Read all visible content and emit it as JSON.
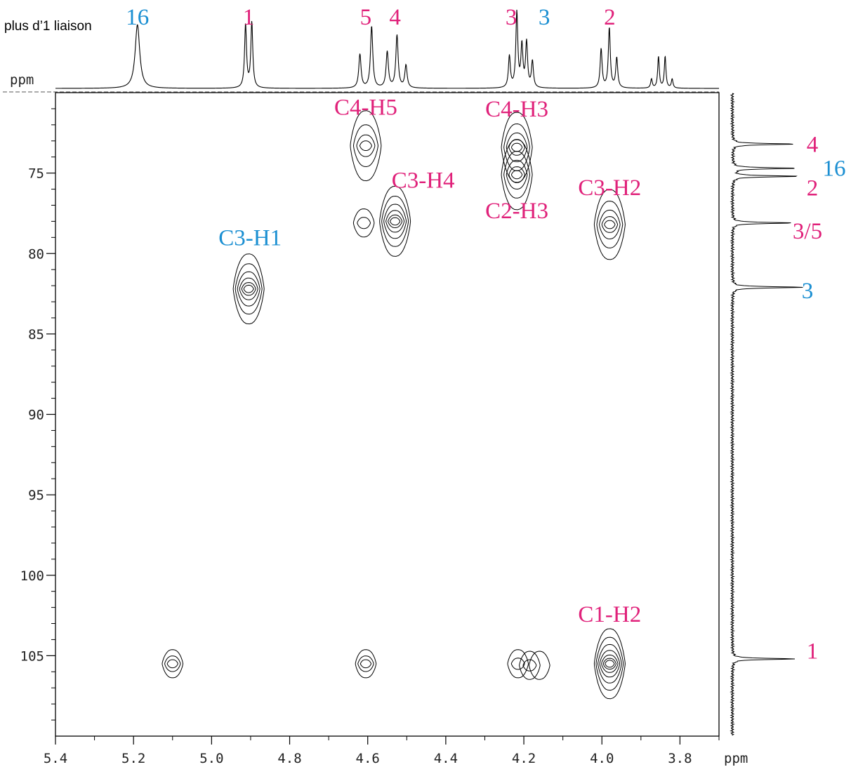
{
  "colors": {
    "pink": "#e0217a",
    "blue": "#1b8fd2",
    "ink": "#000000"
  },
  "chart_data": {
    "type": "scatter",
    "subtype": "2D NMR HMBC contour plot",
    "xlabel": "ppm",
    "top_axis_label": "ppm",
    "xlim": [
      5.4,
      3.7
    ],
    "ylim": [
      70,
      110
    ],
    "x_ticks": [
      "5.4",
      "5.2",
      "5.0",
      "4.8",
      "4.6",
      "4.4",
      "4.2",
      "4.0",
      "3.8"
    ],
    "x_tick_values": [
      5.4,
      5.2,
      5.0,
      4.8,
      4.6,
      4.4,
      4.2,
      4.0,
      3.8
    ],
    "y_ticks": [
      "75",
      "80",
      "85",
      "90",
      "95",
      "100",
      "105"
    ],
    "y_tick_values": [
      75,
      80,
      85,
      90,
      95,
      100,
      105
    ],
    "note": "plus d’1 liaison",
    "top_peak_labels": [
      {
        "text": "16",
        "x": 5.19,
        "color": "blue"
      },
      {
        "text": "1",
        "x": 4.905,
        "color": "pink"
      },
      {
        "text": "5",
        "x": 4.605,
        "color": "pink"
      },
      {
        "text": "4",
        "x": 4.53,
        "color": "pink"
      },
      {
        "text": "3",
        "x": 4.225,
        "color": "pink"
      },
      {
        "text": "3",
        "x": 4.18,
        "color": "blue"
      },
      {
        "text": "2",
        "x": 3.98,
        "color": "pink"
      }
    ],
    "right_peak_labels": [
      {
        "text": "4",
        "y": 73.2,
        "color": "pink"
      },
      {
        "text": "16",
        "y": 74.7,
        "color": "blue"
      },
      {
        "text": "2",
        "y": 75.9,
        "color": "pink"
      },
      {
        "text": "3/5",
        "y": 78.6,
        "color": "pink"
      },
      {
        "text": "3",
        "y": 82.3,
        "color": "blue"
      },
      {
        "text": "1",
        "y": 104.7,
        "color": "pink"
      }
    ],
    "cross_peaks": [
      {
        "label": "C4-H5",
        "x": 4.605,
        "y": 73.3,
        "color": "pink",
        "levels": 4
      },
      {
        "label": "C3-H4",
        "x": 4.53,
        "y": 78.0,
        "color": "pink",
        "levels": 6
      },
      {
        "label": "C4-H3",
        "x": 4.218,
        "y": 73.4,
        "color": "pink",
        "levels": 5
      },
      {
        "label": "C2-H3",
        "x": 4.218,
        "y": 75.1,
        "color": "pink",
        "levels": 5
      },
      {
        "label": "C3-H2",
        "x": 3.98,
        "y": 78.2,
        "color": "pink",
        "levels": 5
      },
      {
        "label": "C3-H1",
        "x": 4.905,
        "y": 82.2,
        "color": "blue",
        "levels": 6
      },
      {
        "label": "C1-H2",
        "x": 3.98,
        "y": 105.5,
        "color": "pink",
        "levels": 7
      },
      {
        "label": "",
        "x": 4.61,
        "y": 78.1,
        "color": "ink",
        "levels": 2
      },
      {
        "label": "",
        "x": 5.1,
        "y": 105.5,
        "color": "ink",
        "levels": 3
      },
      {
        "label": "",
        "x": 4.605,
        "y": 105.5,
        "color": "ink",
        "levels": 3
      },
      {
        "label": "",
        "x": 4.215,
        "y": 105.5,
        "color": "ink",
        "levels": 2
      },
      {
        "label": "",
        "x": 4.185,
        "y": 105.6,
        "color": "ink",
        "levels": 2
      },
      {
        "label": "",
        "x": 4.16,
        "y": 105.6,
        "color": "ink",
        "levels": 1
      }
    ],
    "h1_peaks": [
      {
        "x": 5.19,
        "h": 0.85,
        "w": 0.007
      },
      {
        "x": 4.913,
        "h": 0.84,
        "w": 0.003
      },
      {
        "x": 4.897,
        "h": 0.87,
        "w": 0.003
      },
      {
        "x": 4.62,
        "h": 0.45,
        "w": 0.0035
      },
      {
        "x": 4.59,
        "h": 0.82,
        "w": 0.0035
      },
      {
        "x": 4.55,
        "h": 0.48,
        "w": 0.0035
      },
      {
        "x": 4.525,
        "h": 0.7,
        "w": 0.0035
      },
      {
        "x": 4.502,
        "h": 0.3,
        "w": 0.0035
      },
      {
        "x": 4.237,
        "h": 0.42,
        "w": 0.003
      },
      {
        "x": 4.218,
        "h": 1.0,
        "w": 0.003
      },
      {
        "x": 4.205,
        "h": 0.55,
        "w": 0.003
      },
      {
        "x": 4.193,
        "h": 0.6,
        "w": 0.003
      },
      {
        "x": 4.178,
        "h": 0.35,
        "w": 0.003
      },
      {
        "x": 4.002,
        "h": 0.52,
        "w": 0.003
      },
      {
        "x": 3.981,
        "h": 0.8,
        "w": 0.003
      },
      {
        "x": 3.962,
        "h": 0.4,
        "w": 0.003
      },
      {
        "x": 3.873,
        "h": 0.12,
        "w": 0.0025
      },
      {
        "x": 3.855,
        "h": 0.42,
        "w": 0.0025
      },
      {
        "x": 3.838,
        "h": 0.42,
        "w": 0.0025
      },
      {
        "x": 3.82,
        "h": 0.12,
        "w": 0.0025
      }
    ],
    "c13_peaks": [
      {
        "y": 73.2,
        "h": 0.85
      },
      {
        "y": 74.7,
        "h": 0.88
      },
      {
        "y": 75.2,
        "h": 0.91
      },
      {
        "y": 78.1,
        "h": 0.82
      },
      {
        "y": 82.1,
        "h": 0.97
      },
      {
        "y": 105.2,
        "h": 0.85
      }
    ]
  }
}
